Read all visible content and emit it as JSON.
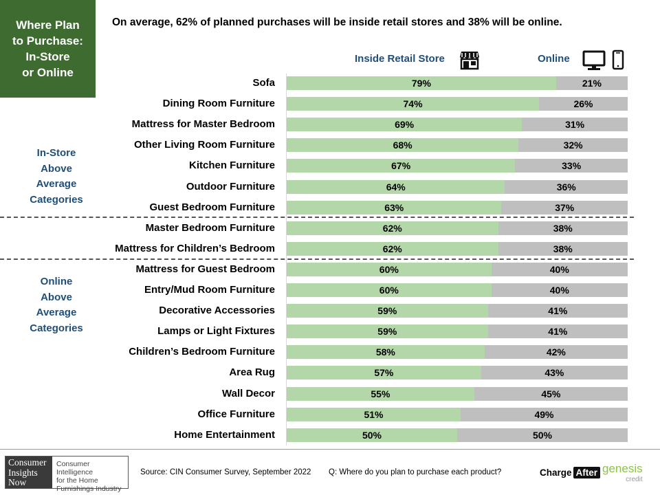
{
  "title": "Where Plan\nto Purchase:\nIn-Store\nor Online",
  "subtitle": "On average, 62% of planned purchases will be inside retail stores and 38% will be online.",
  "legend": {
    "store": "Inside Retail Store",
    "online": "Online"
  },
  "groups": {
    "instore": "In-Store\nAbove\nAverage\nCategories",
    "online": "Online\nAbove\nAverage\nCategories"
  },
  "colors": {
    "store_bar": "#b3d7a8",
    "online_bar": "#bfbfbf",
    "title_bg": "#3d6b30",
    "accent_text": "#1f4e79"
  },
  "icons": [
    "storefront-icon",
    "monitor-icon",
    "phone-icon"
  ],
  "chart_data": {
    "type": "bar",
    "orientation": "horizontal-stacked-100",
    "categories": [
      "Sofa",
      "Dining Room Furniture",
      "Mattress for Master Bedroom",
      "Other Living Room Furniture",
      "Kitchen Furniture",
      "Outdoor Furniture",
      "Guest Bedroom Furniture",
      "Master Bedroom Furniture",
      "Mattress for Children’s Bedroom",
      "Mattress for Guest Bedroom",
      "Entry/Mud Room Furniture",
      "Decorative Accessories",
      "Lamps or Light Fixtures",
      "Children’s Bedroom Furniture",
      "Area Rug",
      "Wall Decor",
      "Office Furniture",
      "Home Entertainment"
    ],
    "series": [
      {
        "name": "Inside Retail Store",
        "values": [
          79,
          74,
          69,
          68,
          67,
          64,
          63,
          62,
          62,
          60,
          60,
          59,
          59,
          58,
          57,
          55,
          51,
          50
        ]
      },
      {
        "name": "Online",
        "values": [
          21,
          26,
          31,
          32,
          33,
          36,
          37,
          38,
          38,
          40,
          40,
          41,
          41,
          42,
          43,
          45,
          49,
          50
        ]
      }
    ],
    "value_suffix": "%",
    "ylim": [
      0,
      100
    ],
    "legend_position": "top-right"
  },
  "footer": {
    "logo_mark": "Consumer\nInsights\nNow",
    "logo_tagline": "Consumer Intelligence\nfor the Home\nFurnishings Industry",
    "source": "Source: CIN Consumer Survey, September  2022",
    "question": "Q: Where do you plan to purchase each product?",
    "sponsor1_a": "Charge",
    "sponsor1_b": "After",
    "sponsor2": "genesis",
    "sponsor2_sub": "credit"
  }
}
